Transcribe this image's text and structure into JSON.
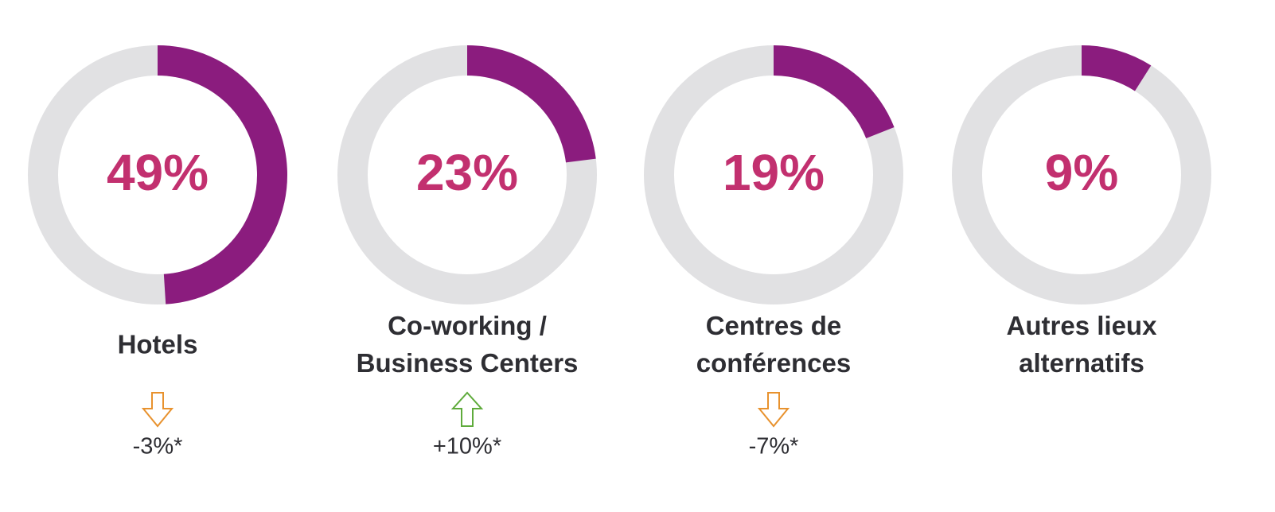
{
  "chart_data": [
    {
      "type": "donut",
      "label": [
        "Hotels"
      ],
      "values": [
        49
      ],
      "value_labels": [
        "49%"
      ],
      "color": "#8b1c7e",
      "track_color": "#e1e1e3",
      "value_label_color": "#c2306f",
      "annotation": "-3%*",
      "arrow": "down",
      "arrow_color": "#e8922e"
    },
    {
      "type": "donut",
      "label": [
        "Co-working /",
        "Business Centers"
      ],
      "values": [
        23
      ],
      "value_labels": [
        "23%"
      ],
      "color": "#8b1c7e",
      "track_color": "#e1e1e3",
      "value_label_color": "#c2306f",
      "annotation": "+10%*",
      "arrow": "up",
      "arrow_color": "#5fab3c"
    },
    {
      "type": "donut",
      "label": [
        "Centres de",
        "conférences"
      ],
      "values": [
        19
      ],
      "value_labels": [
        "19%"
      ],
      "color": "#8b1c7e",
      "track_color": "#e1e1e3",
      "value_label_color": "#c2306f",
      "annotation": "-7%*",
      "arrow": "down",
      "arrow_color": "#e8922e"
    },
    {
      "type": "donut",
      "label": [
        "Autres lieux",
        "alternatifs"
      ],
      "values": [
        9
      ],
      "value_labels": [
        "9%"
      ],
      "color": "#8b1c7e",
      "track_color": "#e1e1e3",
      "value_label_color": "#c2306f"
    }
  ]
}
